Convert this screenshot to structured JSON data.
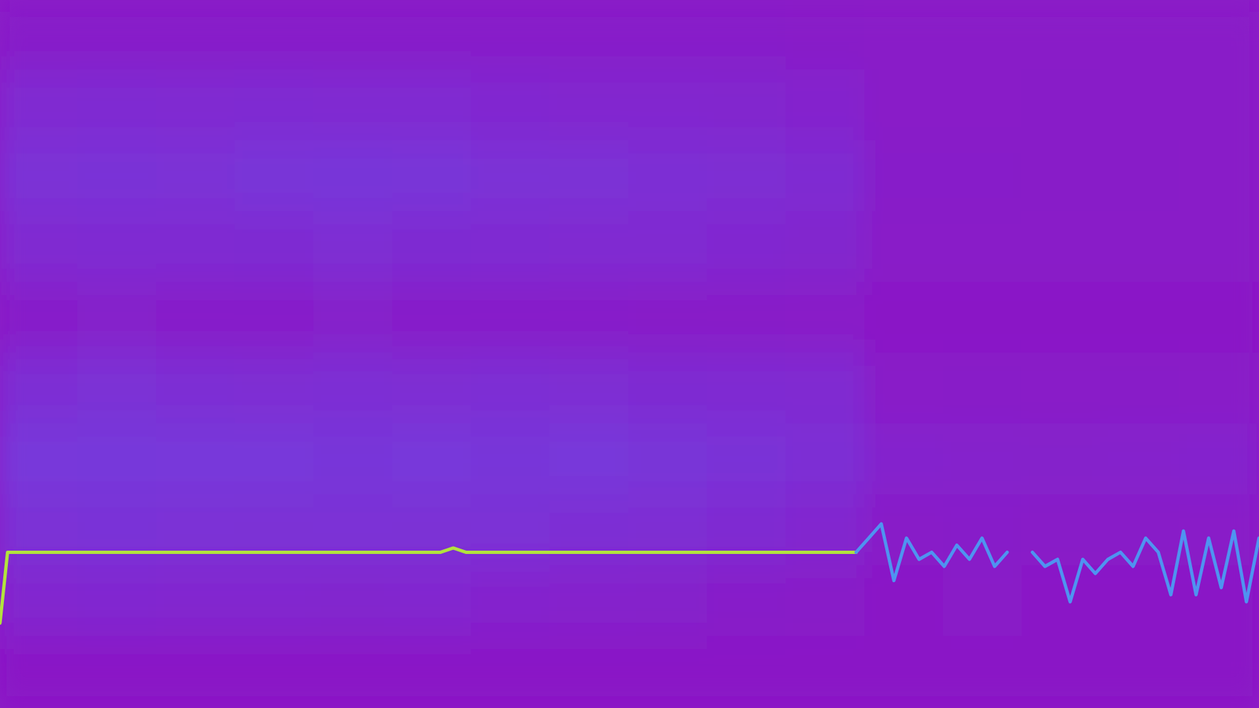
{
  "chart_data": {
    "type": "heatmap",
    "tick_labels": false,
    "xlim": [
      0,
      100
    ],
    "ylim": [
      0,
      100
    ],
    "zlim": [
      0,
      1
    ],
    "cells": [
      [
        0.15,
        0.15,
        0.15,
        0.15,
        0.15,
        0.15,
        0.15,
        0.15,
        0.15,
        0.15,
        0.12,
        0.1,
        0.1,
        0.1,
        0.1,
        0.1
      ],
      [
        0.35,
        0.38,
        0.35,
        0.38,
        0.35,
        0.35,
        0.32,
        0.3,
        0.3,
        0.28,
        0.25,
        0.1,
        0.1,
        0.12,
        0.1,
        0.1
      ],
      [
        0.5,
        0.52,
        0.5,
        0.55,
        0.58,
        0.55,
        0.5,
        0.48,
        0.45,
        0.42,
        0.38,
        0.15,
        0.15,
        0.12,
        0.12,
        0.1
      ],
      [
        0.35,
        0.38,
        0.38,
        0.4,
        0.42,
        0.4,
        0.38,
        0.35,
        0.35,
        0.32,
        0.28,
        0.1,
        0.1,
        0.1,
        0.1,
        0.1
      ],
      [
        0.15,
        0.18,
        0.15,
        0.15,
        0.18,
        0.15,
        0.15,
        0.15,
        0.12,
        0.12,
        0.1,
        0.05,
        0.05,
        0.05,
        0.05,
        0.05
      ],
      [
        0.45,
        0.48,
        0.45,
        0.42,
        0.45,
        0.42,
        0.45,
        0.42,
        0.4,
        0.38,
        0.35,
        0.1,
        0.12,
        0.1,
        0.12,
        0.1
      ],
      [
        0.6,
        0.62,
        0.6,
        0.6,
        0.58,
        0.6,
        0.58,
        0.6,
        0.55,
        0.52,
        0.45,
        0.25,
        0.22,
        0.2,
        0.22,
        0.25
      ],
      [
        0.5,
        0.52,
        0.5,
        0.48,
        0.5,
        0.48,
        0.5,
        0.45,
        0.42,
        0.38,
        0.3,
        0.12,
        0.15,
        0.12,
        0.12,
        0.1
      ],
      [
        0.3,
        0.32,
        0.3,
        0.3,
        0.28,
        0.3,
        0.25,
        0.22,
        0.2,
        0.15,
        0.12,
        0.05,
        0.08,
        0.05,
        0.05,
        0.05
      ],
      [
        0.05,
        0.05,
        0.05,
        0.05,
        0.05,
        0.05,
        0.05,
        0.05,
        0.05,
        0.05,
        0.05,
        0.05,
        0.05,
        0.05,
        0.05,
        0.05
      ]
    ],
    "x": [
      0,
      0.6,
      1,
      5,
      10,
      15,
      20,
      25,
      30,
      35,
      36,
      37,
      40,
      45,
      50,
      55,
      60,
      65,
      68,
      69,
      70,
      71,
      72,
      73,
      74,
      75,
      76,
      77,
      78,
      79,
      80,
      81,
      82,
      83,
      84,
      85,
      86,
      87,
      88,
      89,
      90,
      91,
      92,
      93,
      94,
      95,
      96,
      97,
      98,
      99,
      100
    ],
    "series": [
      {
        "type": "line",
        "color": "#b2e23e",
        "values": [
          12,
          22,
          22,
          22,
          22,
          22,
          22,
          22,
          22,
          22,
          22.6,
          22,
          22,
          22,
          22,
          22,
          22,
          22,
          22,
          null,
          null,
          null,
          null,
          null,
          null,
          null,
          null,
          null,
          null,
          null,
          null,
          null,
          null,
          null,
          null,
          null,
          null,
          null,
          null,
          null,
          null,
          null,
          null,
          null,
          null,
          null,
          null,
          null,
          null,
          null,
          null
        ]
      },
      {
        "type": "line",
        "color": "#4f93f0",
        "values": [
          null,
          null,
          null,
          null,
          null,
          null,
          null,
          null,
          null,
          null,
          null,
          null,
          null,
          null,
          null,
          null,
          null,
          null,
          22,
          24,
          26,
          18,
          24,
          21,
          22,
          20,
          23,
          21,
          24,
          20,
          22,
          null,
          22,
          20,
          21,
          15,
          21,
          19,
          21,
          22,
          20,
          24,
          22,
          16,
          25,
          16,
          24,
          17,
          25,
          15,
          24
        ]
      }
    ]
  }
}
